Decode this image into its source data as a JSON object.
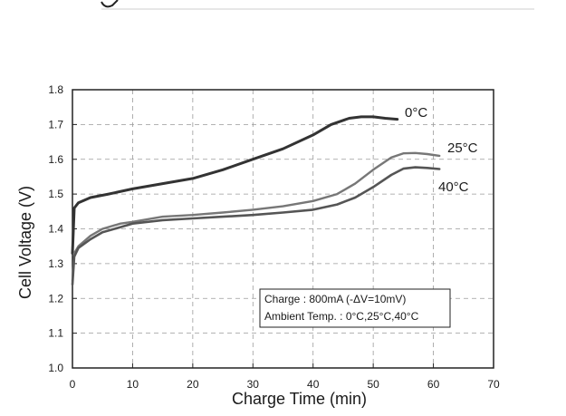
{
  "chart_data": {
    "type": "line",
    "title": "",
    "xlabel": "Charge Time (min)",
    "ylabel": "Cell Voltage (V)",
    "xlim": [
      0,
      70
    ],
    "ylim": [
      1.0,
      1.8
    ],
    "x_ticks": [
      "0",
      "10",
      "20",
      "30",
      "40",
      "50",
      "60",
      "70"
    ],
    "y_ticks": [
      "1.0",
      "1.1",
      "1.2",
      "1.3",
      "1.4",
      "1.5",
      "1.6",
      "1.7",
      "1.8"
    ],
    "grid": true,
    "series": [
      {
        "name": "0°C",
        "color": "#333333",
        "x": [
          0,
          0.3,
          1,
          3,
          6,
          10,
          15,
          20,
          25,
          30,
          35,
          40,
          43,
          46,
          48,
          50,
          52,
          54
        ],
        "y": [
          1.33,
          1.46,
          1.475,
          1.49,
          1.5,
          1.515,
          1.53,
          1.545,
          1.57,
          1.6,
          1.63,
          1.67,
          1.7,
          1.718,
          1.722,
          1.722,
          1.718,
          1.715
        ]
      },
      {
        "name": "25°C",
        "color": "#777777",
        "x": [
          0,
          0.3,
          1,
          3,
          5,
          8,
          10,
          15,
          20,
          25,
          30,
          35,
          40,
          44,
          47,
          50,
          53,
          55,
          57,
          59,
          61
        ],
        "y": [
          1.25,
          1.33,
          1.35,
          1.38,
          1.4,
          1.415,
          1.42,
          1.435,
          1.44,
          1.447,
          1.455,
          1.465,
          1.48,
          1.5,
          1.53,
          1.57,
          1.605,
          1.617,
          1.618,
          1.615,
          1.61
        ]
      },
      {
        "name": "40°C",
        "color": "#555555",
        "x": [
          0,
          0.3,
          1,
          3,
          5,
          8,
          10,
          15,
          20,
          25,
          30,
          35,
          40,
          44,
          47,
          50,
          53,
          55,
          57,
          59,
          61
        ],
        "y": [
          1.24,
          1.32,
          1.345,
          1.37,
          1.39,
          1.405,
          1.415,
          1.425,
          1.43,
          1.435,
          1.44,
          1.447,
          1.455,
          1.47,
          1.49,
          1.52,
          1.555,
          1.573,
          1.577,
          1.575,
          1.572
        ]
      }
    ],
    "annotation": {
      "line1": "Charge : 800mA (-ΔV=10mV)",
      "line2": "Ambient Temp. : 0°C,25°C,40°C"
    }
  }
}
